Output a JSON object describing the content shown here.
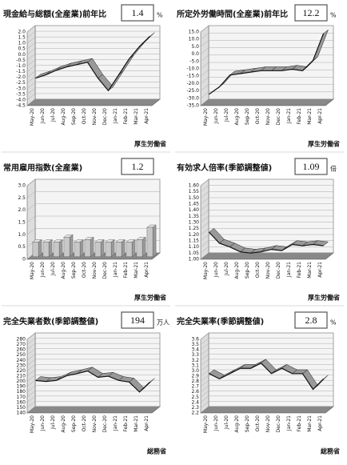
{
  "chart_data": [
    {
      "type": "line",
      "title": "現金給与総額(全産業)前年比",
      "latest": 1.4,
      "unit": "%",
      "source": "厚生労働省",
      "categories": [
        "May-20",
        "Jun-20",
        "Jul-20",
        "Aug-20",
        "Sep-20",
        "Oct-20",
        "Nov-20",
        "Dec-20",
        "Jan-21",
        "Feb-21",
        "Mar-21",
        "Apr-21"
      ],
      "values": [
        -2.3,
        -2.0,
        -1.6,
        -1.3,
        -1.1,
        -0.9,
        -2.3,
        -3.4,
        -2.0,
        -0.6,
        0.5,
        1.4
      ],
      "ylim": [
        -4.5,
        2.0
      ],
      "yticks": [
        -4.5,
        {
          "value": -4,
          "label": "-4.0"
        },
        -3.5,
        {
          "value": -3,
          "label": "-3.0"
        },
        -2.5,
        {
          "value": -2,
          "label": "-2.0"
        },
        -1.5,
        {
          "value": -1,
          "label": "-1.0"
        },
        -0.5,
        {
          "value": 0,
          "label": "0.0"
        },
        0.5,
        {
          "value": 1,
          "label": "1.0"
        },
        1.5,
        {
          "value": 2,
          "label": "2.0"
        }
      ],
      "color": "#999999"
    },
    {
      "type": "line",
      "title": "所定外労働時間(全産業)前年比",
      "latest": 12.2,
      "unit": "%",
      "source": "厚生労働省",
      "categories": [
        "May-20",
        "Jun-20",
        "Jul-20",
        "Aug-20",
        "Sep-20",
        "Oct-20",
        "Nov-20",
        "Dec-20",
        "Jan-21",
        "Feb-21",
        "Mar-21",
        "Apr-21"
      ],
      "values": [
        -29,
        -24,
        -16,
        -15,
        -14,
        -13,
        -13,
        -13,
        -12,
        -13,
        -6,
        12.2
      ],
      "ylim": [
        -35,
        15
      ],
      "yticks": [
        {
          "value": -35,
          "label": "-35.0"
        },
        {
          "value": -30,
          "label": "-30.0"
        },
        {
          "value": -25,
          "label": "-25.0"
        },
        {
          "value": -20,
          "label": "-20.0"
        },
        {
          "value": -15,
          "label": "-15.0"
        },
        {
          "value": -10,
          "label": "-10.0"
        },
        {
          "value": -5,
          "label": "-5.0"
        },
        {
          "value": 0,
          "label": "0.0"
        },
        {
          "value": 5,
          "label": "5.0"
        },
        {
          "value": 10,
          "label": "10.0"
        },
        {
          "value": 15,
          "label": "15.0"
        }
      ],
      "color": "#999999"
    },
    {
      "type": "bar",
      "title": "常用雇用指数(全産業)",
      "latest": 1.2,
      "source": "厚生労働省",
      "categories": [
        "May-20",
        "Jun-20",
        "Jul-20",
        "Aug-20",
        "Sep-20",
        "Oct-20",
        "Nov-20",
        "Dec-20",
        "Jan-21",
        "Feb-21",
        "Mar-21",
        "Apr-21"
      ],
      "values": [
        0.6,
        0.6,
        0.6,
        0.8,
        0.6,
        0.7,
        0.6,
        0.6,
        0.6,
        0.6,
        0.7,
        1.2
      ],
      "ylim": [
        0,
        3.0
      ],
      "yticks": [
        0,
        0.5,
        {
          "value": 1,
          "label": "1.0"
        },
        1.5,
        {
          "value": 2,
          "label": "2.0"
        },
        2.5,
        {
          "value": 3,
          "label": "3.0"
        }
      ],
      "color": "#c8c8c8"
    },
    {
      "type": "line",
      "title": "有効求人倍率(季節調整値)",
      "latest": 1.09,
      "unit": "倍",
      "source": "厚生労働省",
      "categories": [
        "May-20",
        "Jun-20",
        "Jul-20",
        "Aug-20",
        "Sep-20",
        "Oct-20",
        "Nov-20",
        "Dec-20",
        "Jan-21",
        "Feb-21",
        "Mar-21",
        "Apr-21"
      ],
      "values": [
        1.2,
        1.11,
        1.08,
        1.04,
        1.03,
        1.04,
        1.06,
        1.05,
        1.1,
        1.09,
        1.1,
        1.09
      ],
      "ylim": [
        1.0,
        1.6
      ],
      "yticks": [
        {
          "value": 1,
          "label": "1.00"
        },
        1.05,
        {
          "value": 1.1,
          "label": "1.10"
        },
        1.15,
        {
          "value": 1.2,
          "label": "1.20"
        },
        1.25,
        {
          "value": 1.3,
          "label": "1.30"
        },
        1.35,
        {
          "value": 1.4,
          "label": "1.40"
        },
        1.45,
        {
          "value": 1.5,
          "label": "1.50"
        },
        1.55,
        {
          "value": 1.6,
          "label": "1.60"
        }
      ],
      "color": "#999999"
    },
    {
      "type": "line",
      "title": "完全失業者数(季節調整値)",
      "latest": 194,
      "unit": "万人",
      "source": "総務省",
      "categories": [
        "May-20",
        "Jun-20",
        "Jul-20",
        "Aug-20",
        "Sep-20",
        "Oct-20",
        "Nov-20",
        "Dec-20",
        "Jan-21",
        "Feb-21",
        "Mar-21",
        "Apr-21"
      ],
      "values": [
        197,
        195,
        197,
        206,
        210,
        215,
        203,
        205,
        197,
        194,
        175,
        194
      ],
      "ylim": [
        140,
        280
      ],
      "yticks": [
        140,
        150,
        160,
        170,
        180,
        190,
        200,
        210,
        220,
        230,
        240,
        250,
        260,
        270,
        280
      ],
      "color": "#999999"
    },
    {
      "type": "line",
      "title": "完全失業率(季節調整値)",
      "latest": 2.8,
      "unit": "%",
      "source": "総務省",
      "categories": [
        "May-20",
        "Jun-20",
        "Jul-20",
        "Aug-20",
        "Sep-20",
        "Oct-20",
        "Nov-20",
        "Dec-20",
        "Jan-21",
        "Feb-21",
        "Mar-21",
        "Apr-21"
      ],
      "values": [
        2.9,
        2.8,
        2.9,
        3.0,
        3.0,
        3.1,
        2.9,
        3.0,
        2.9,
        2.9,
        2.6,
        2.8
      ],
      "ylim": [
        2.2,
        3.6
      ],
      "yticks": [
        2.2,
        2.3,
        2.4,
        2.5,
        2.6,
        2.7,
        2.8,
        2.9,
        {
          "value": 3,
          "label": "3.0"
        },
        3.1,
        3.2,
        3.3,
        3.4,
        3.5,
        3.6
      ],
      "color": "#999999"
    }
  ]
}
